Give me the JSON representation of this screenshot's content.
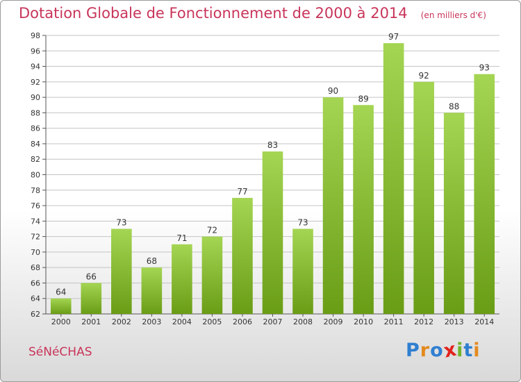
{
  "header": {
    "title": "Dotation Globale de Fonctionnement de 2000 à 2014",
    "subtitle": "(en milliers d'€)"
  },
  "footer": {
    "commune": "SéNéCHAS",
    "logo": "Proxiti"
  },
  "colors": {
    "accent": "#c8355a",
    "bar_top": "#a4d553",
    "bar_bottom": "#6a9d16",
    "logo_letters": [
      "#2f7fd1",
      "#e38a1e",
      "#2f7fd1",
      "#e2221c",
      "#6fb42c",
      "#2f7fd1",
      "#e38a1e"
    ]
  },
  "chart_data": {
    "type": "bar",
    "title": "Dotation Globale de Fonctionnement de 2000 à 2014",
    "subtitle": "(en milliers d'€)",
    "categories": [
      "2000",
      "2001",
      "2002",
      "2003",
      "2004",
      "2005",
      "2006",
      "2007",
      "2008",
      "2009",
      "2010",
      "2011",
      "2012",
      "2013",
      "2014"
    ],
    "values": [
      64,
      66,
      73,
      68,
      71,
      72,
      77,
      83,
      73,
      90,
      89,
      97,
      92,
      88,
      93
    ],
    "ylim": [
      62,
      98
    ],
    "yticks": [
      62,
      64,
      66,
      68,
      70,
      72,
      74,
      76,
      78,
      80,
      82,
      84,
      86,
      88,
      90,
      92,
      94,
      96,
      98
    ],
    "grid": true,
    "data_labels": true
  }
}
